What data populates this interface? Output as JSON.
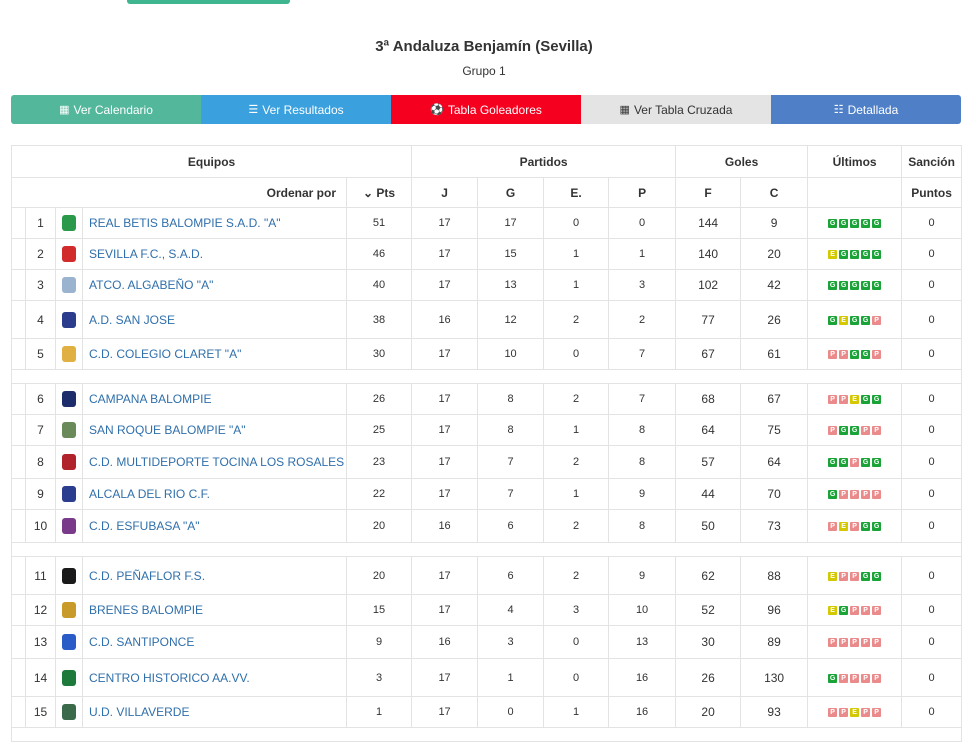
{
  "header": {
    "title": "3ª Andaluza Benjamín (Sevilla)",
    "subtitle": "Grupo 1"
  },
  "buttons": {
    "calendario": "Ver Calendario",
    "resultados": "Ver Resultados",
    "goleadores": "Tabla Goleadores",
    "cruzada": "Ver Tabla Cruzada",
    "detallada": "Detallada"
  },
  "table": {
    "headers": {
      "equipos": "Equipos",
      "partidos": "Partidos",
      "goles": "Goles",
      "ultimos": "Últimos",
      "sancion": "Sanción",
      "ordenar": "Ordenar por",
      "pts": "Pts",
      "j": "J",
      "g": "G",
      "e": "E.",
      "p": "P",
      "f": "F",
      "c": "C",
      "puntos": "Puntos"
    },
    "rows": [
      {
        "pos": "1",
        "team": "REAL BETIS BALOMPIE S.A.D. \"A\"",
        "pts": "51",
        "j": "17",
        "g": "17",
        "e": "0",
        "p": "0",
        "f": "144",
        "c": "9",
        "form": [
          "G",
          "G",
          "G",
          "G",
          "G"
        ],
        "sancion": "0",
        "crest": "#2a9a4a"
      },
      {
        "pos": "2",
        "team": "SEVILLA F.C., S.A.D.",
        "pts": "46",
        "j": "17",
        "g": "15",
        "e": "1",
        "p": "1",
        "f": "140",
        "c": "20",
        "form": [
          "E",
          "G",
          "G",
          "G",
          "G"
        ],
        "sancion": "0",
        "crest": "#d22b2b"
      },
      {
        "pos": "3",
        "team": "ATCO. ALGABEÑO \"A\"",
        "pts": "40",
        "j": "17",
        "g": "13",
        "e": "1",
        "p": "3",
        "f": "102",
        "c": "42",
        "form": [
          "G",
          "G",
          "G",
          "G",
          "G"
        ],
        "sancion": "0",
        "crest": "#9ab3cf"
      },
      {
        "pos": "4",
        "team": "A.D. SAN JOSE",
        "pts": "38",
        "j": "16",
        "g": "12",
        "e": "2",
        "p": "2",
        "f": "77",
        "c": "26",
        "form": [
          "G",
          "E",
          "G",
          "G",
          "P"
        ],
        "sancion": "0",
        "crest": "#2b3c8c"
      },
      {
        "pos": "5",
        "team": "C.D. COLEGIO CLARET \"A\"",
        "pts": "30",
        "j": "17",
        "g": "10",
        "e": "0",
        "p": "7",
        "f": "67",
        "c": "61",
        "form": [
          "P",
          "P",
          "G",
          "G",
          "P"
        ],
        "sancion": "0",
        "crest": "#e0b043"
      },
      {
        "sep": true
      },
      {
        "pos": "6",
        "team": "CAMPANA BALOMPIE",
        "pts": "26",
        "j": "17",
        "g": "8",
        "e": "2",
        "p": "7",
        "f": "68",
        "c": "67",
        "form": [
          "P",
          "P",
          "E",
          "G",
          "G"
        ],
        "sancion": "0",
        "crest": "#1d2d6b"
      },
      {
        "pos": "7",
        "team": "SAN ROQUE BALOMPIE \"A\"",
        "pts": "25",
        "j": "17",
        "g": "8",
        "e": "1",
        "p": "8",
        "f": "64",
        "c": "75",
        "form": [
          "P",
          "G",
          "G",
          "P",
          "P"
        ],
        "sancion": "0",
        "crest": "#6a8a5a"
      },
      {
        "pos": "8",
        "team": "C.D. MULTIDEPORTE TOCINA LOS ROSALES",
        "pts": "23",
        "j": "17",
        "g": "7",
        "e": "2",
        "p": "8",
        "f": "57",
        "c": "64",
        "form": [
          "G",
          "G",
          "P",
          "G",
          "G"
        ],
        "sancion": "0",
        "crest": "#b0232a"
      },
      {
        "pos": "9",
        "team": "ALCALA DEL RIO C.F.",
        "pts": "22",
        "j": "17",
        "g": "7",
        "e": "1",
        "p": "9",
        "f": "44",
        "c": "70",
        "form": [
          "G",
          "P",
          "P",
          "P",
          "P"
        ],
        "sancion": "0",
        "crest": "#2a3d8f"
      },
      {
        "pos": "10",
        "team": "C.D. ESFUBASA \"A\"",
        "pts": "20",
        "j": "16",
        "g": "6",
        "e": "2",
        "p": "8",
        "f": "50",
        "c": "73",
        "form": [
          "P",
          "E",
          "P",
          "G",
          "G"
        ],
        "sancion": "0",
        "crest": "#7a3a8a"
      },
      {
        "sep": true
      },
      {
        "pos": "11",
        "team": "C.D. PEÑAFLOR F.S.",
        "pts": "20",
        "j": "17",
        "g": "6",
        "e": "2",
        "p": "9",
        "f": "62",
        "c": "88",
        "form": [
          "E",
          "P",
          "P",
          "G",
          "G"
        ],
        "sancion": "0",
        "crest": "#1a1a1a"
      },
      {
        "pos": "12",
        "team": "BRENES BALOMPIE",
        "pts": "15",
        "j": "17",
        "g": "4",
        "e": "3",
        "p": "10",
        "f": "52",
        "c": "96",
        "form": [
          "E",
          "G",
          "P",
          "P",
          "P"
        ],
        "sancion": "0",
        "crest": "#c89a2a"
      },
      {
        "pos": "13",
        "team": "C.D. SANTIPONCE",
        "pts": "9",
        "j": "16",
        "g": "3",
        "e": "0",
        "p": "13",
        "f": "30",
        "c": "89",
        "form": [
          "P",
          "P",
          "P",
          "P",
          "P"
        ],
        "sancion": "0",
        "crest": "#2a5cc8"
      },
      {
        "pos": "14",
        "team": "CENTRO HISTORICO AA.VV.",
        "pts": "3",
        "j": "17",
        "g": "1",
        "e": "0",
        "p": "16",
        "f": "26",
        "c": "130",
        "form": [
          "G",
          "P",
          "P",
          "P",
          "P"
        ],
        "sancion": "0",
        "crest": "#1e7a3a"
      },
      {
        "pos": "15",
        "team": "U.D. VILLAVERDE",
        "pts": "1",
        "j": "17",
        "g": "0",
        "e": "1",
        "p": "16",
        "f": "20",
        "c": "93",
        "form": [
          "P",
          "P",
          "E",
          "P",
          "P"
        ],
        "sancion": "0",
        "crest": "#3a6a4a"
      },
      {
        "sep": true
      }
    ]
  },
  "colors": {
    "win": "#1aa337",
    "draw": "#d4c800",
    "loss": "#ea8a8a",
    "link": "#2f6fab"
  }
}
